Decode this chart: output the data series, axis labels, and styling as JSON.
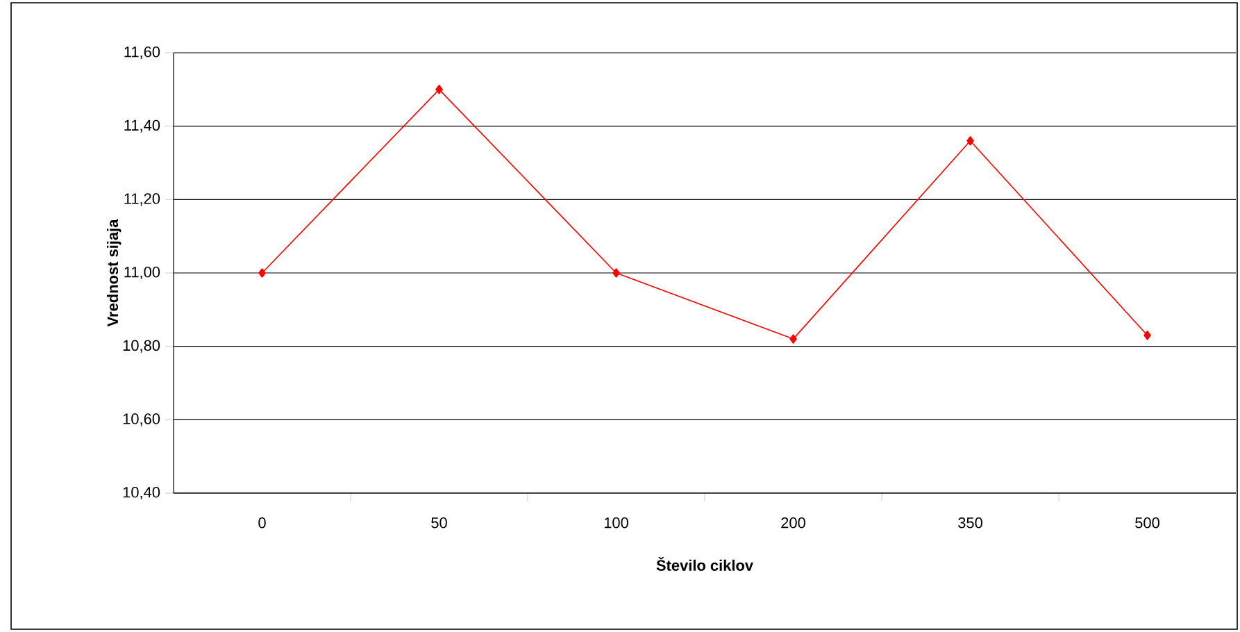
{
  "chart_data": {
    "type": "line",
    "xlabel": "Število ciklov",
    "ylabel": "Vrednost sijaja",
    "categories": [
      "0",
      "50",
      "100",
      "200",
      "350",
      "500"
    ],
    "series": [
      {
        "color": "#ff0000",
        "values": [
          11.0,
          11.5,
          11.0,
          10.82,
          11.36,
          10.83
        ]
      }
    ],
    "ylim": [
      10.4,
      11.6
    ],
    "yticks": [
      {
        "value": 10.4,
        "label": "10,40"
      },
      {
        "value": 10.6,
        "label": "10,60"
      },
      {
        "value": 10.8,
        "label": "10,80"
      },
      {
        "value": 11.0,
        "label": "11,00"
      },
      {
        "value": 11.2,
        "label": "11,20"
      },
      {
        "value": 11.4,
        "label": "11,40"
      },
      {
        "value": 11.6,
        "label": "11,60"
      }
    ],
    "grid": "y",
    "marker": "diamond",
    "line_style": "solid"
  }
}
